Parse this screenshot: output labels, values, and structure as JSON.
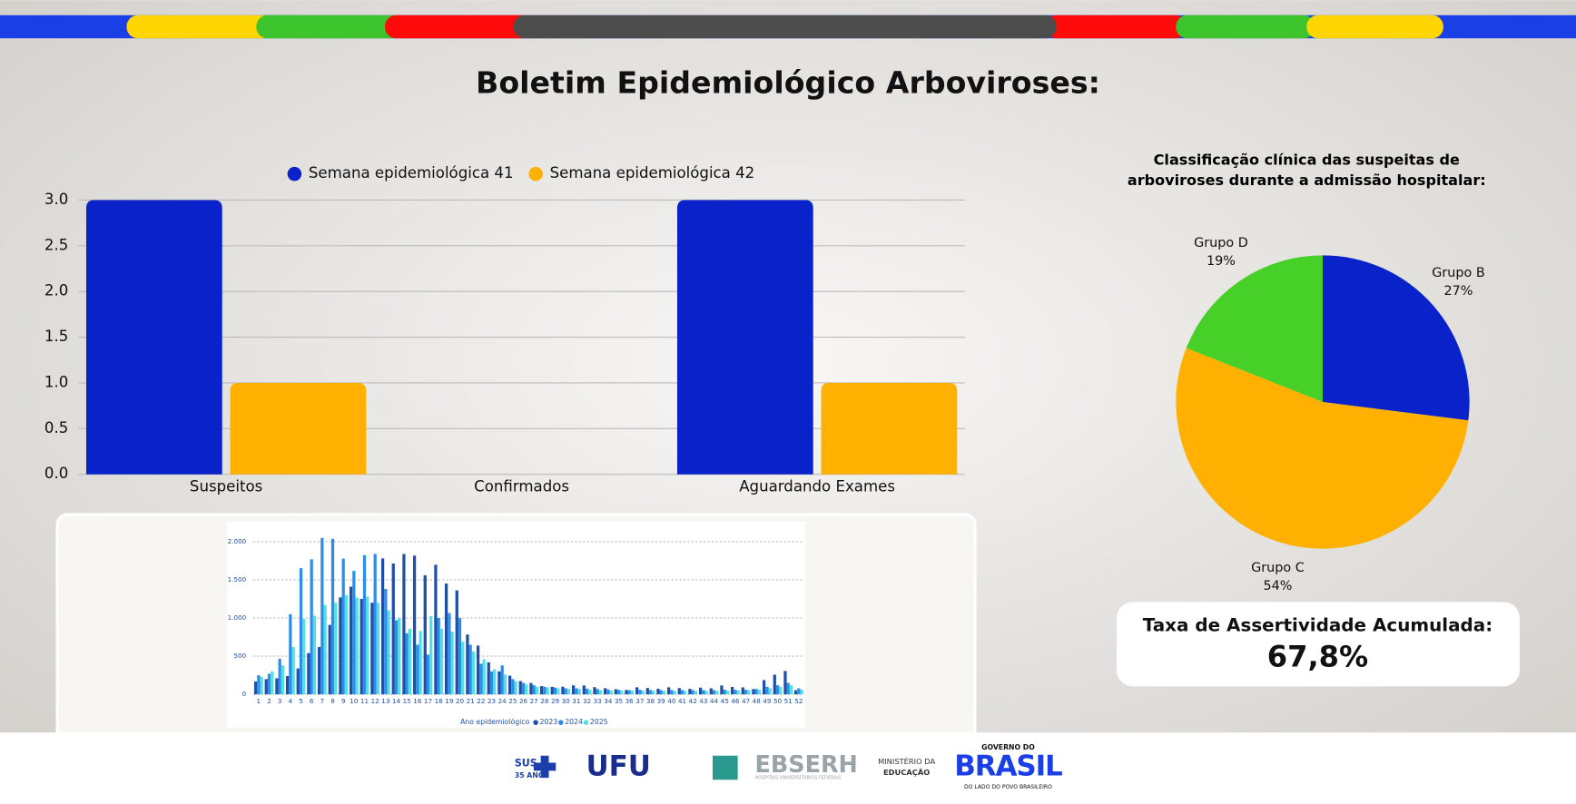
{
  "title": "Boletim Epidemiológico Arboviroses:",
  "chart_data": [
    {
      "type": "bar",
      "categories": [
        "Suspeitos",
        "Confirmados",
        "Aguardando Exames"
      ],
      "series": [
        {
          "name": "Semana epidemiológica 41",
          "color": "#0a22c9",
          "values": [
            3,
            0,
            3
          ]
        },
        {
          "name": "Semana epidemiológica 42",
          "color": "#ffb000",
          "values": [
            1,
            0,
            1
          ]
        }
      ],
      "ylim": [
        0,
        3
      ],
      "yticks": [
        {
          "value": 0,
          "label": "0.0"
        },
        0.5,
        {
          "value": 1,
          "label": "1.0"
        },
        1.5,
        {
          "value": 2,
          "label": "2.0"
        },
        2.5,
        {
          "value": 3,
          "label": "3.0"
        }
      ],
      "grid": true,
      "legend": "top"
    },
    {
      "type": "pie",
      "title": "Classificação clínica das suspeitas de arboviroses durante a admissão hospitalar:",
      "categories": [
        "Grupo B",
        "Grupo C",
        "Grupo D"
      ],
      "values": [
        27,
        54,
        19
      ],
      "value_labels": [
        "27%",
        "54%",
        "19%"
      ],
      "colors": [
        "#0a22c9",
        "#ffb000",
        "#47d128"
      ]
    },
    {
      "type": "bar",
      "legend_title": "Ano epidemiológico",
      "categories": [
        "1",
        "2",
        "3",
        "4",
        "5",
        "6",
        "7",
        "8",
        "9",
        "10",
        "11",
        "12",
        "13",
        "14",
        "15",
        "16",
        "17",
        "18",
        "19",
        "20",
        "21",
        "22",
        "23",
        "24",
        "25",
        "26",
        "27",
        "28",
        "29",
        "30",
        "31",
        "32",
        "33",
        "34",
        "35",
        "36",
        "37",
        "38",
        "39",
        "40",
        "41",
        "42",
        "43",
        "44",
        "45",
        "46",
        "47",
        "48",
        "49",
        "50",
        "51",
        "52"
      ],
      "series": [
        {
          "name": "2023",
          "color": "#1f4fa8",
          "values": [
            168,
            200,
            210,
            240,
            340,
            540,
            620,
            910,
            1270,
            1410,
            1250,
            1200,
            1780,
            1714,
            1839,
            1817,
            1559,
            1697,
            1451,
            1362,
            784,
            640,
            420,
            300,
            246,
            174,
            149,
            107,
            99,
            100,
            118,
            117,
            94,
            81,
            68,
            57,
            93,
            84,
            74,
            92,
            82,
            72,
            88,
            79,
            117,
            97,
            91,
            69,
            186,
            257,
            307,
            54
          ]
        },
        {
          "name": "2024",
          "color": "#2e8de6",
          "values": [
            250,
            270,
            467,
            1050,
            1652,
            1768,
            2049,
            2038,
            1778,
            1617,
            1823,
            1840,
            1380,
            970,
            800,
            650,
            520,
            1000,
            1064,
            999,
            650,
            400,
            300,
            380,
            200,
            150,
            120,
            100,
            90,
            80,
            80,
            75,
            70,
            65,
            60,
            55,
            60,
            55,
            55,
            55,
            55,
            55,
            55,
            55,
            60,
            60,
            60,
            70,
            100,
            120,
            150,
            80
          ]
        },
        {
          "name": "2025",
          "color": "#4fe0e8",
          "values": [
            230,
            300,
            380,
            620,
            990,
            1030,
            1170,
            1200,
            1300,
            1270,
            1280,
            1200,
            1100,
            1000,
            860,
            830,
            1024,
            860,
            820,
            690,
            560,
            460,
            330,
            260,
            170,
            130,
            100,
            90,
            80,
            70,
            70,
            60,
            55,
            50,
            50,
            50,
            50,
            50,
            45,
            45,
            45,
            45,
            45,
            45,
            50,
            50,
            55,
            60,
            80,
            100,
            120,
            60
          ]
        }
      ],
      "ylim": [
        0,
        2200
      ],
      "yticks": [
        0,
        500,
        {
          "value": 1000,
          "label": "1.000"
        },
        {
          "value": 1500,
          "label": "1.500"
        },
        {
          "value": 2000,
          "label": "2.000"
        }
      ],
      "grid": true,
      "legend": "bottom"
    }
  ],
  "card": {
    "title": "Taxa de Assertividade Acumulada:",
    "value": "67,8%"
  },
  "footer": {
    "logos": [
      "SUS",
      "35 ANOS",
      "UFU",
      "EBSERH",
      "HOSPITAIS UNIVERSITÁRIOS FEDERAIS",
      "MINISTÉRIO DA",
      "EDUCAÇÃO",
      "GOVERNO DO",
      "BRASIL",
      "DO LADO DO POVO BRASILEIRO"
    ]
  }
}
